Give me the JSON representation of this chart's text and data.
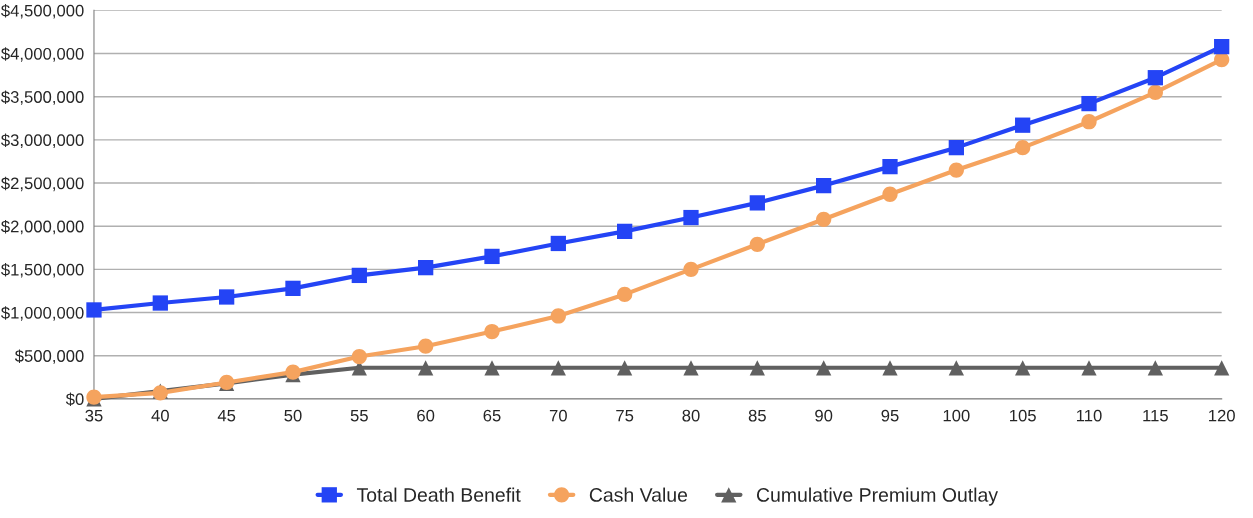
{
  "chart_data": {
    "type": "line",
    "x": [
      35,
      40,
      45,
      50,
      55,
      60,
      65,
      70,
      75,
      80,
      85,
      90,
      95,
      100,
      105,
      110,
      115,
      120
    ],
    "series": [
      {
        "name": "Total Death Benefit",
        "color": "#2444f5",
        "marker": "square",
        "values": [
          1030000,
          1110000,
          1180000,
          1280000,
          1430000,
          1520000,
          1650000,
          1800000,
          1940000,
          2100000,
          2270000,
          2470000,
          2690000,
          2910000,
          3170000,
          3420000,
          3720000,
          4080000
        ]
      },
      {
        "name": "Cash Value",
        "color": "#f5a35e",
        "marker": "circle",
        "values": [
          20000,
          70000,
          190000,
          310000,
          490000,
          610000,
          780000,
          960000,
          1210000,
          1500000,
          1790000,
          2080000,
          2370000,
          2650000,
          2910000,
          3210000,
          3550000,
          3930000
        ]
      },
      {
        "name": "Cumulative Premium Outlay",
        "color": "#606060",
        "marker": "triangle",
        "values": [
          0,
          90000,
          180000,
          280000,
          360000,
          360000,
          360000,
          360000,
          360000,
          360000,
          360000,
          360000,
          360000,
          360000,
          360000,
          360000,
          360000,
          360000
        ]
      }
    ],
    "xlim": [
      35,
      120
    ],
    "xticks": [
      35,
      40,
      45,
      50,
      55,
      60,
      65,
      70,
      75,
      80,
      85,
      90,
      95,
      100,
      105,
      110,
      115,
      120
    ],
    "ylim": [
      0,
      4500000
    ],
    "yticks": [
      {
        "value": 0,
        "label": "$0"
      },
      {
        "value": 500000,
        "label": "$500,000"
      },
      {
        "value": 1000000,
        "label": "$1,000,000"
      },
      {
        "value": 1500000,
        "label": "$1,500,000"
      },
      {
        "value": 2000000,
        "label": "$2,000,000"
      },
      {
        "value": 2500000,
        "label": "$2,500,000"
      },
      {
        "value": 3000000,
        "label": "$3,000,000"
      },
      {
        "value": 3500000,
        "label": "$3,500,000"
      },
      {
        "value": 4000000,
        "label": "$4,000,000"
      },
      {
        "value": 4500000,
        "label": "$4,500,000"
      }
    ],
    "grid": "y",
    "legend": "bottom",
    "line_style": "solid"
  }
}
